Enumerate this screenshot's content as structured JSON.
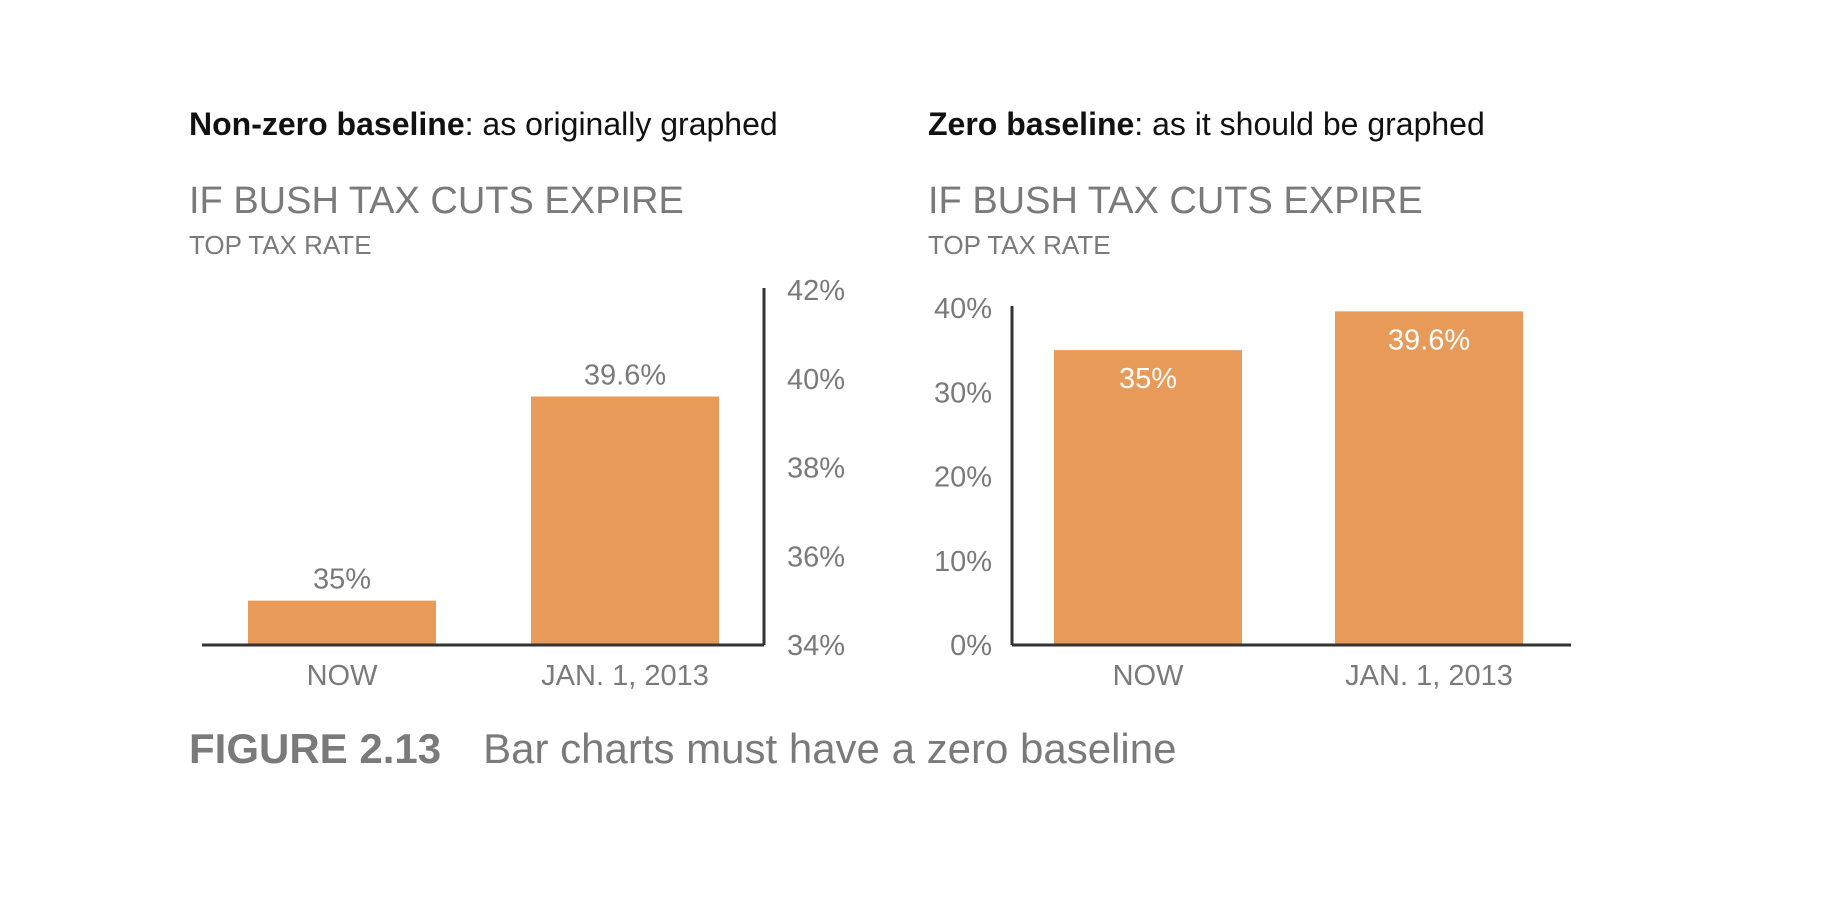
{
  "panels": [
    {
      "heading_lead": "Non-zero baseline",
      "heading_rest": ": as originally graphed",
      "title": "IF BUSH TAX CUTS EXPIRE",
      "subtitle": "TOP TAX RATE"
    },
    {
      "heading_lead": "Zero baseline",
      "heading_rest": ": as it should be graphed",
      "title": "IF BUSH TAX CUTS EXPIRE",
      "subtitle": "TOP TAX RATE"
    }
  ],
  "colors": {
    "bar": "#e89a58",
    "axis": "#333333",
    "label": "#7a7a7a",
    "inside_label": "#ffffff"
  },
  "chart_data": [
    {
      "type": "bar",
      "title": "IF BUSH TAX CUTS EXPIRE",
      "subtitle": "TOP TAX RATE",
      "categories": [
        "NOW",
        "JAN. 1, 2013"
      ],
      "values": [
        35,
        39.6
      ],
      "data_labels": [
        "35%",
        "39.6%"
      ],
      "ylim": [
        34,
        42
      ],
      "yticks": [
        34,
        36,
        38,
        40,
        42
      ],
      "ytick_labels": [
        "34%",
        "36%",
        "38%",
        "40%",
        "42%"
      ],
      "y_axis_side": "right",
      "data_label_position": "above"
    },
    {
      "type": "bar",
      "title": "IF BUSH TAX CUTS EXPIRE",
      "subtitle": "TOP TAX RATE",
      "categories": [
        "NOW",
        "JAN. 1, 2013"
      ],
      "values": [
        35,
        39.6
      ],
      "data_labels": [
        "35%",
        "39.6%"
      ],
      "ylim": [
        0,
        40
      ],
      "yticks": [
        0,
        10,
        20,
        30,
        40
      ],
      "ytick_labels": [
        "0%",
        "10%",
        "20%",
        "30%",
        "40%"
      ],
      "y_axis_side": "left",
      "data_label_position": "inside"
    }
  ],
  "caption": {
    "label": "FIGURE 2.13",
    "text": "Bar charts must have a zero baseline"
  }
}
